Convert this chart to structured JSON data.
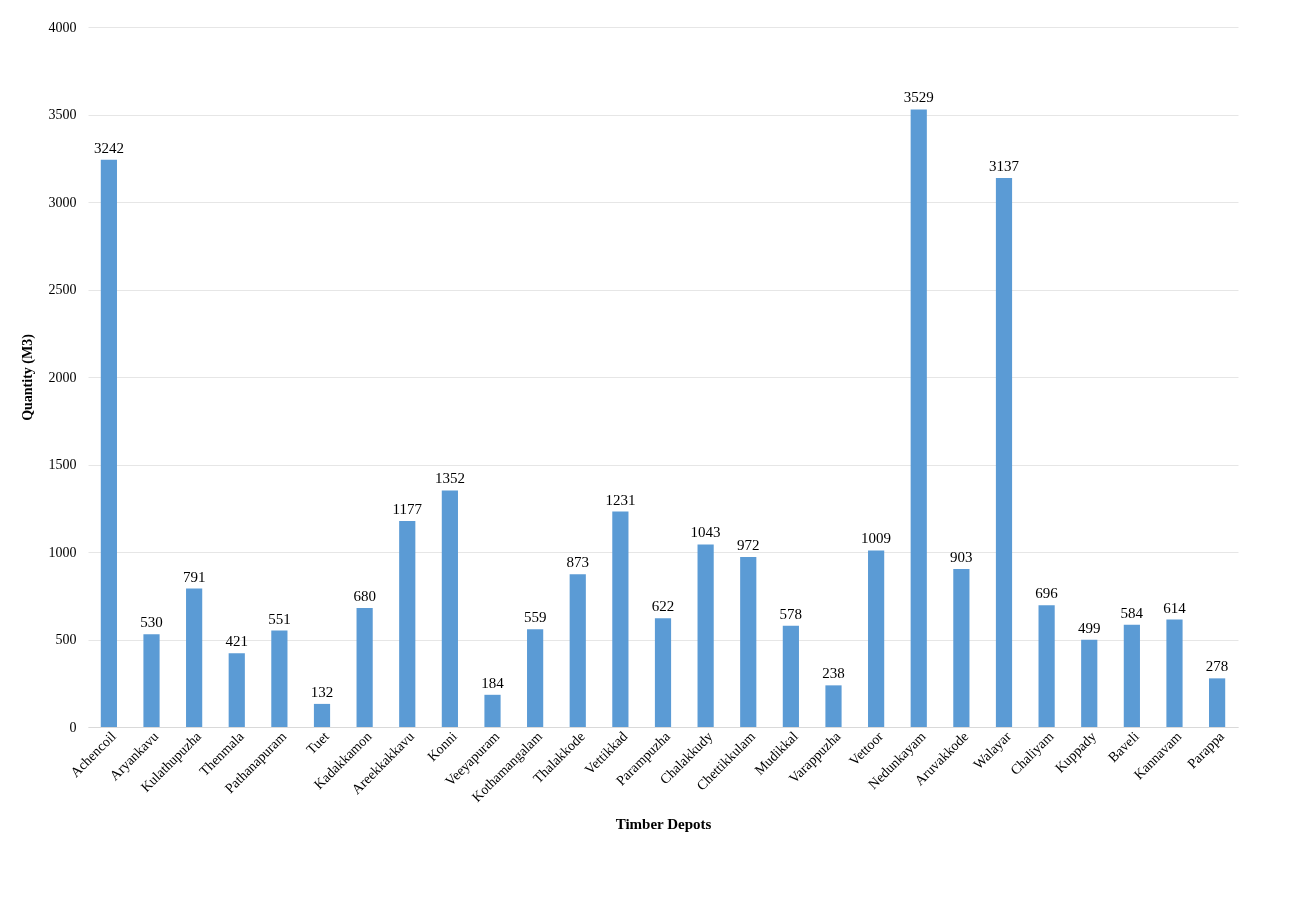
{
  "chart_data": {
    "type": "bar",
    "xlabel": "Timber Depots",
    "ylabel": "Quantity (M3)",
    "categories": [
      "Achencoil",
      "Aryankavu",
      "Kulathupuzha",
      "Thenmala",
      "Pathanapuram",
      "Tuet",
      "Kadakkamon",
      "Areekkakkavu",
      "Konni",
      "Veeyapuram",
      "Kothamangalam",
      "Thalakkode",
      "Vettikkad",
      "Parampuzha",
      "Chalakkudy",
      "Chettikkulam",
      "Mudikkal",
      "Varappuzha",
      "Vettoor",
      "Nedunkayam",
      "Aruvakkode",
      "Walayar",
      "Chaliyam",
      "Kuppady",
      "Baveli",
      "Kannavam",
      "Parappa"
    ],
    "values": [
      3242,
      530,
      791,
      421,
      551,
      132,
      680,
      1177,
      1352,
      184,
      559,
      873,
      1231,
      622,
      1043,
      972,
      578,
      238,
      1009,
      3529,
      903,
      3137,
      696,
      499,
      584,
      614,
      278
    ],
    "color": "#5b9bd5",
    "ylim": [
      0,
      4000
    ],
    "yticks": [
      0,
      500,
      1000,
      1500,
      2000,
      2500,
      3000,
      3500,
      4000
    ],
    "grid": "y",
    "data_labels": true
  }
}
